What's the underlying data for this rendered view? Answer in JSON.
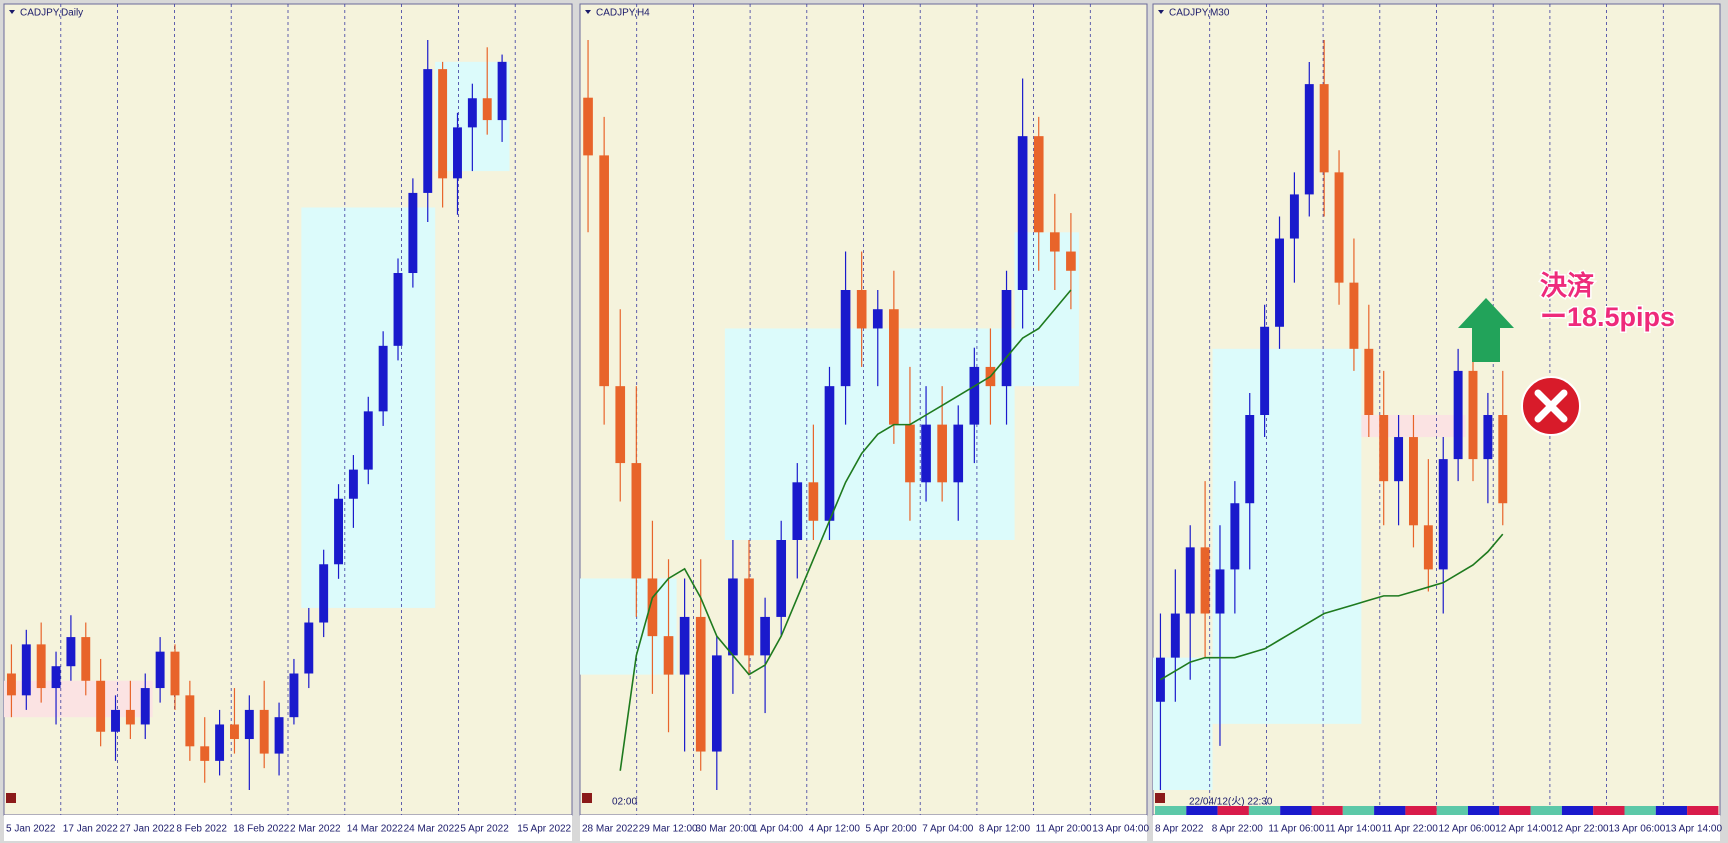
{
  "bull_color": "#1a1acc",
  "bear_color": "#e8642a",
  "ma_color": "#1e7a1e",
  "background": "#f5f3dc",
  "panels": [
    {
      "title": "CADJPY,Daily",
      "x_labels": [
        "5 Jan 2022",
        "17 Jan 2022",
        "27 Jan 2022",
        "8 Feb 2022",
        "18 Feb 2022",
        "2 Mar 2022",
        "14 Mar 2022",
        "24 Mar 2022",
        "5 Apr 2022",
        "15 Apr 2022"
      ],
      "candles": [
        [
          90.6,
          91.0,
          90.0,
          90.3
        ],
        [
          90.3,
          91.2,
          90.1,
          91.0
        ],
        [
          91.0,
          91.3,
          90.2,
          90.4
        ],
        [
          90.4,
          90.9,
          89.9,
          90.7
        ],
        [
          90.7,
          91.4,
          90.5,
          91.1
        ],
        [
          91.1,
          91.3,
          90.3,
          90.5
        ],
        [
          90.5,
          90.8,
          89.6,
          89.8
        ],
        [
          89.8,
          90.3,
          89.4,
          90.1
        ],
        [
          90.1,
          90.5,
          89.7,
          89.9
        ],
        [
          89.9,
          90.6,
          89.7,
          90.4
        ],
        [
          90.4,
          91.1,
          90.2,
          90.9
        ],
        [
          90.9,
          91.0,
          90.1,
          90.3
        ],
        [
          90.3,
          90.5,
          89.4,
          89.6
        ],
        [
          89.6,
          90.0,
          89.1,
          89.4
        ],
        [
          89.4,
          90.1,
          89.2,
          89.9
        ],
        [
          89.9,
          90.4,
          89.5,
          89.7
        ],
        [
          89.7,
          90.3,
          89.0,
          90.1
        ],
        [
          90.1,
          90.5,
          89.3,
          89.5
        ],
        [
          89.5,
          90.2,
          89.2,
          90.0
        ],
        [
          90.0,
          90.8,
          89.9,
          90.6
        ],
        [
          90.6,
          91.5,
          90.4,
          91.3
        ],
        [
          91.3,
          92.3,
          91.1,
          92.1
        ],
        [
          92.1,
          93.2,
          91.9,
          93.0
        ],
        [
          93.0,
          93.6,
          92.6,
          93.4
        ],
        [
          93.4,
          94.4,
          93.2,
          94.2
        ],
        [
          94.2,
          95.3,
          94.0,
          95.1
        ],
        [
          95.1,
          96.3,
          94.9,
          96.1
        ],
        [
          96.1,
          97.4,
          95.9,
          97.2
        ],
        [
          97.2,
          99.3,
          96.8,
          98.9
        ],
        [
          98.9,
          99.0,
          97.0,
          97.4
        ],
        [
          97.4,
          98.3,
          96.9,
          98.1
        ],
        [
          98.1,
          98.7,
          97.5,
          98.5
        ],
        [
          98.5,
          99.2,
          98.0,
          98.2
        ],
        [
          98.2,
          99.1,
          97.9,
          99.0
        ]
      ],
      "zones": [
        {
          "from": 0,
          "to": 9,
          "low": 90.0,
          "high": 90.5,
          "color": "#fbe3e3"
        },
        {
          "from": 20,
          "to": 28,
          "low": 91.5,
          "high": 97.0,
          "color": "#dcfbfb"
        },
        {
          "from": 29,
          "to": 33,
          "low": 97.5,
          "high": 99.0,
          "color": "#dcfbfb"
        }
      ]
    },
    {
      "title": "CADJPY,H4",
      "x_labels": [
        "28 Mar 2022",
        "29 Mar 12:00",
        "30 Mar 20:00",
        "1 Apr 04:00",
        "4 Apr 12:00",
        "5 Apr 20:00",
        "7 Apr 04:00",
        "8 Apr 12:00",
        "11 Apr 20:00",
        "13 Apr 04:00"
      ],
      "status": "02:00",
      "candles": [
        [
          99.3,
          99.6,
          98.6,
          99.0
        ],
        [
          99.0,
          99.2,
          97.6,
          97.8
        ],
        [
          97.8,
          98.2,
          97.2,
          97.4
        ],
        [
          97.4,
          97.8,
          96.6,
          96.8
        ],
        [
          96.8,
          97.1,
          96.2,
          96.5
        ],
        [
          96.5,
          96.9,
          96.0,
          96.3
        ],
        [
          96.3,
          96.8,
          95.9,
          96.6
        ],
        [
          96.6,
          96.9,
          95.8,
          95.9
        ],
        [
          95.9,
          96.5,
          95.7,
          96.4
        ],
        [
          96.4,
          97.0,
          96.2,
          96.8
        ],
        [
          96.8,
          97.0,
          96.3,
          96.4
        ],
        [
          96.4,
          96.7,
          96.1,
          96.6
        ],
        [
          96.6,
          97.1,
          96.5,
          97.0
        ],
        [
          97.0,
          97.4,
          96.8,
          97.3
        ],
        [
          97.3,
          97.6,
          97.0,
          97.1
        ],
        [
          97.1,
          97.9,
          97.0,
          97.8
        ],
        [
          97.8,
          98.5,
          97.6,
          98.3
        ],
        [
          98.3,
          98.5,
          97.9,
          98.1
        ],
        [
          98.1,
          98.3,
          97.8,
          98.2
        ],
        [
          98.2,
          98.4,
          97.5,
          97.6
        ],
        [
          97.6,
          97.9,
          97.1,
          97.3
        ],
        [
          97.3,
          97.8,
          97.2,
          97.6
        ],
        [
          97.6,
          97.8,
          97.2,
          97.3
        ],
        [
          97.3,
          97.7,
          97.1,
          97.6
        ],
        [
          97.6,
          98.0,
          97.4,
          97.9
        ],
        [
          97.9,
          98.1,
          97.6,
          97.8
        ],
        [
          97.8,
          98.4,
          97.6,
          98.3
        ],
        [
          98.3,
          99.4,
          98.1,
          99.1
        ],
        [
          99.1,
          99.2,
          98.4,
          98.6
        ],
        [
          98.6,
          98.8,
          98.3,
          98.5
        ],
        [
          98.5,
          98.7,
          98.2,
          98.4
        ]
      ],
      "ma": [
        null,
        null,
        95.8,
        96.4,
        96.7,
        96.8,
        96.85,
        96.7,
        96.5,
        96.4,
        96.3,
        96.35,
        96.5,
        96.7,
        96.9,
        97.1,
        97.3,
        97.45,
        97.55,
        97.6,
        97.6,
        97.65,
        97.7,
        97.75,
        97.8,
        97.85,
        97.95,
        98.05,
        98.1,
        98.2,
        98.3
      ],
      "zones": [
        {
          "from": 0,
          "to": 5,
          "low": 96.3,
          "high": 96.8,
          "color": "#dcfbfb"
        },
        {
          "from": 9,
          "to": 26,
          "low": 97.0,
          "high": 98.1,
          "color": "#dcfbfb"
        },
        {
          "from": 27,
          "to": 30,
          "low": 97.8,
          "high": 98.6,
          "color": "#dcfbfb"
        }
      ]
    },
    {
      "title": "CADJPY,M30",
      "x_labels": [
        "8 Apr 2022",
        "8 Apr 22:00",
        "11 Apr 06:00",
        "11 Apr 14:00",
        "11 Apr 22:00",
        "12 Apr 06:00",
        "12 Apr 14:00",
        "12 Apr 22:00",
        "13 Apr 06:00",
        "13 Apr 14:00"
      ],
      "status": "22/04/12(火) 22:30",
      "candles": [
        [
          97.9,
          98.1,
          97.7,
          98.0
        ],
        [
          98.0,
          98.2,
          97.9,
          98.1
        ],
        [
          98.1,
          98.3,
          97.95,
          98.25
        ],
        [
          98.25,
          98.4,
          98.0,
          98.1
        ],
        [
          98.1,
          98.3,
          97.8,
          98.2
        ],
        [
          98.2,
          98.4,
          98.1,
          98.35
        ],
        [
          98.35,
          98.6,
          98.2,
          98.55
        ],
        [
          98.55,
          98.8,
          98.5,
          98.75
        ],
        [
          98.75,
          99.0,
          98.7,
          98.95
        ],
        [
          98.95,
          99.1,
          98.85,
          99.05
        ],
        [
          99.05,
          99.35,
          99.0,
          99.3
        ],
        [
          99.3,
          99.4,
          99.0,
          99.1
        ],
        [
          99.1,
          99.15,
          98.8,
          98.85
        ],
        [
          98.85,
          98.95,
          98.65,
          98.7
        ],
        [
          98.7,
          98.8,
          98.5,
          98.55
        ],
        [
          98.55,
          98.65,
          98.3,
          98.4
        ],
        [
          98.4,
          98.55,
          98.3,
          98.5
        ],
        [
          98.5,
          98.55,
          98.25,
          98.3
        ],
        [
          98.3,
          98.45,
          98.15,
          98.2
        ],
        [
          98.2,
          98.5,
          98.1,
          98.45
        ],
        [
          98.45,
          98.7,
          98.4,
          98.65
        ],
        [
          98.65,
          98.75,
          98.4,
          98.45
        ],
        [
          98.45,
          98.6,
          98.35,
          98.55
        ],
        [
          98.55,
          98.65,
          98.3,
          98.35
        ]
      ],
      "ma": [
        97.95,
        97.97,
        97.99,
        98.0,
        98.0,
        98.0,
        98.01,
        98.02,
        98.04,
        98.06,
        98.08,
        98.1,
        98.11,
        98.12,
        98.13,
        98.14,
        98.14,
        98.15,
        98.16,
        98.17,
        98.19,
        98.21,
        98.24,
        98.28
      ],
      "zones": [
        {
          "from": 0,
          "to": 3,
          "low": 97.7,
          "high": 98.0,
          "color": "#dcfbfb"
        },
        {
          "from": 4,
          "to": 13,
          "low": 97.85,
          "high": 98.7,
          "color": "#dcfbfb"
        },
        {
          "from": 14,
          "to": 20,
          "low": 98.5,
          "high": 98.55,
          "color": "#fbe3e3"
        }
      ],
      "annotation": {
        "line1": "決済",
        "line2": "ー18.5pips"
      }
    }
  ]
}
